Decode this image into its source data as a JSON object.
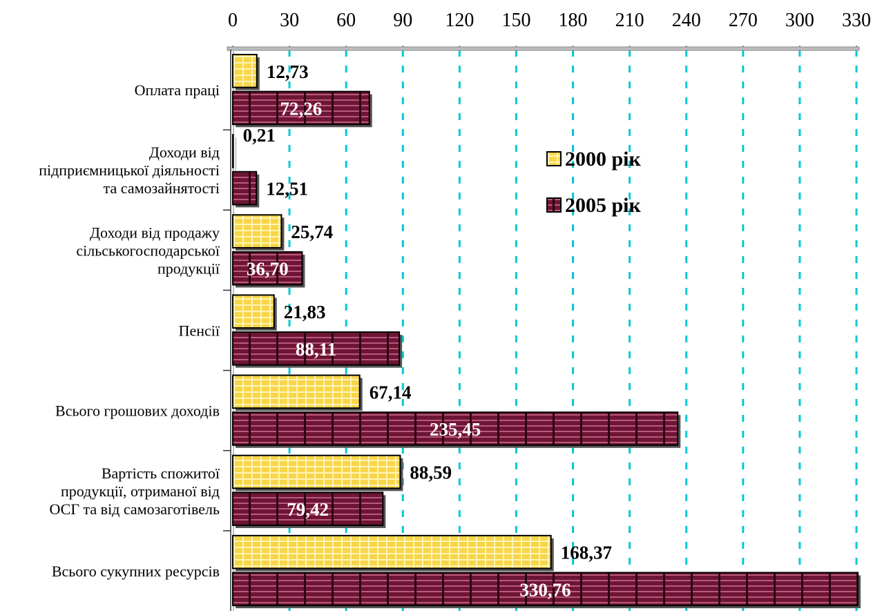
{
  "chart_data": {
    "type": "bar",
    "orientation": "horizontal",
    "title": "",
    "xlabel": "",
    "ylabel": "",
    "xlim": [
      0,
      330
    ],
    "ticks": [
      0,
      30,
      60,
      90,
      120,
      150,
      180,
      210,
      240,
      270,
      300,
      330
    ],
    "grid": true,
    "legend_position": "top-right",
    "categories": [
      [
        "Оплата праці"
      ],
      [
        "Доходи від",
        "підприємницької діяльності",
        "та самозайнятості"
      ],
      [
        "Доходи від продажу",
        "сільськогосподарської",
        "продукції"
      ],
      [
        "Пенсії"
      ],
      [
        "Всього грошових доходів"
      ],
      [
        "Вартість спожитої",
        "продукції, отриманої від",
        "ОСГ та від самозаготівель"
      ],
      [
        "Всього сукупних ресурсів"
      ]
    ],
    "series": [
      {
        "name": "2000 рік",
        "color": "#f7d64a",
        "values": [
          12.73,
          0.21,
          25.74,
          21.83,
          67.14,
          88.59,
          168.37
        ],
        "labels": [
          "12,73",
          "0,21",
          "25,74",
          "21,83",
          "67,14",
          "88,59",
          "168,37"
        ]
      },
      {
        "name": "2005 рік",
        "color": "#6e1535",
        "values": [
          72.26,
          12.51,
          36.7,
          88.11,
          235.45,
          79.42,
          330.76
        ],
        "labels": [
          "72,26",
          "12,51",
          "36,70",
          "88,11",
          "235,45",
          "79,42",
          "330,76"
        ]
      }
    ]
  }
}
